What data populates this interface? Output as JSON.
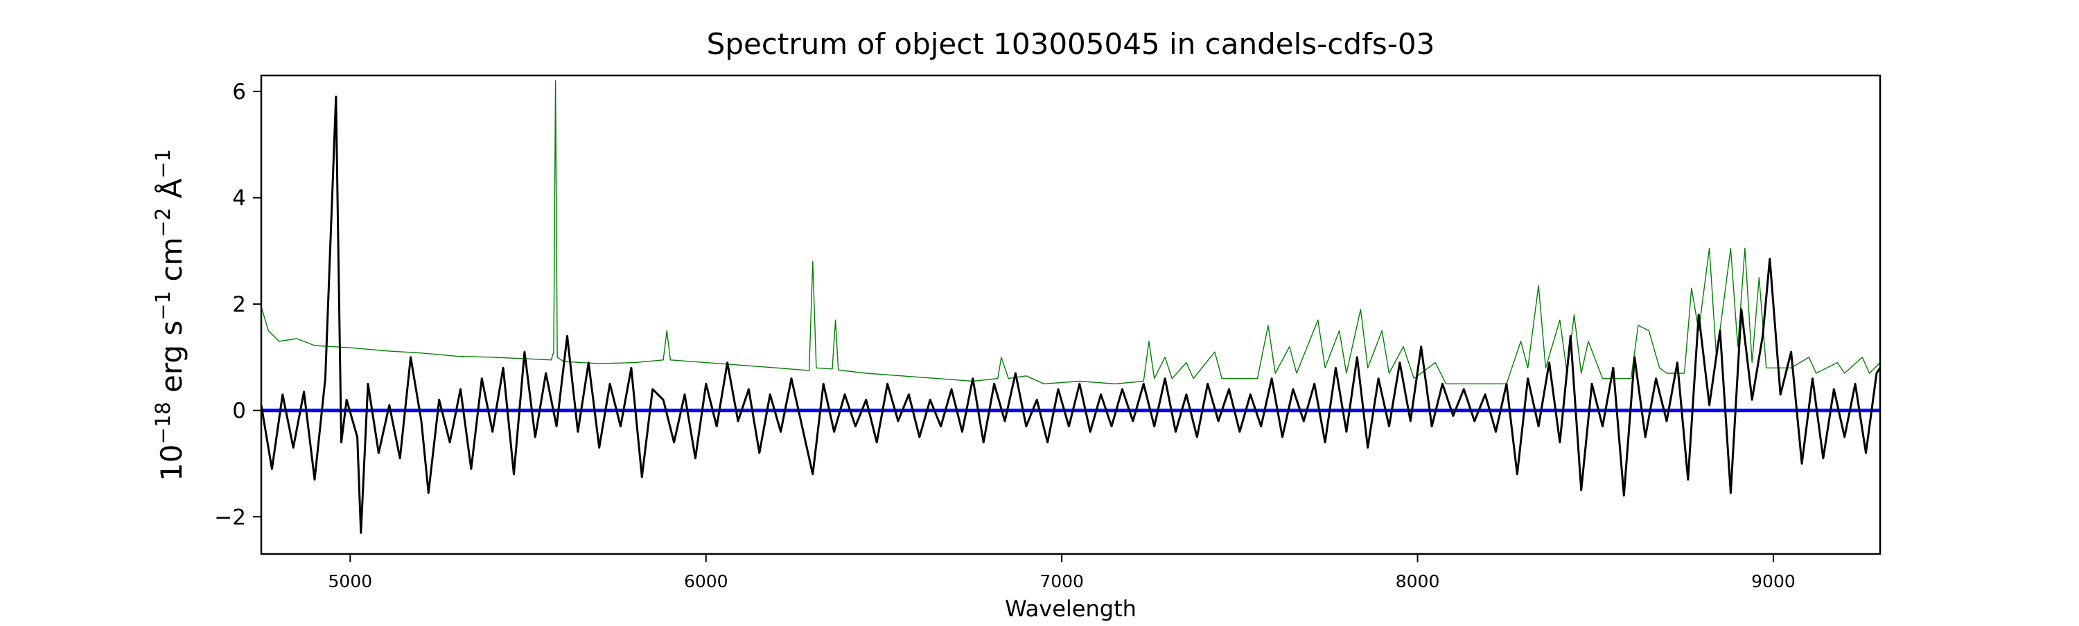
{
  "chart_data": {
    "type": "line",
    "title": "Spectrum of object 103005045 in candels-cdfs-03",
    "xlabel": "Wavelength",
    "ylabel": {
      "base": "10",
      "exp1": "−18",
      "erg": " erg s",
      "exp2": "−1",
      "cm": " cm",
      "exp3": "−2",
      "ang": " Å",
      "exp4": "−1"
    },
    "xlim": [
      4750,
      9300
    ],
    "ylim": [
      -2.7,
      6.3
    ],
    "grid": false,
    "xticks": [
      5000,
      6000,
      7000,
      8000,
      9000
    ],
    "xtick_labels": [
      "5000",
      "6000",
      "7000",
      "8000",
      "9000"
    ],
    "yticks": [
      -2,
      0,
      2,
      4,
      6
    ],
    "ytick_labels": [
      "−2",
      "0",
      "2",
      "4",
      "6"
    ],
    "colors": {
      "flux": "#000000",
      "model": "#008000",
      "zero": "#0000ff"
    },
    "series": [
      {
        "name": "model",
        "color": "#008000",
        "points": [
          [
            4750,
            1.95
          ],
          [
            4770,
            1.5
          ],
          [
            4800,
            1.3
          ],
          [
            4850,
            1.35
          ],
          [
            4900,
            1.22
          ],
          [
            4950,
            1.2
          ],
          [
            5000,
            1.18
          ],
          [
            5100,
            1.12
          ],
          [
            5200,
            1.08
          ],
          [
            5300,
            1.02
          ],
          [
            5400,
            1.0
          ],
          [
            5500,
            0.97
          ],
          [
            5565,
            0.95
          ],
          [
            5572,
            1.1
          ],
          [
            5577,
            6.2
          ],
          [
            5582,
            1.0
          ],
          [
            5600,
            0.92
          ],
          [
            5700,
            0.88
          ],
          [
            5800,
            0.9
          ],
          [
            5880,
            0.95
          ],
          [
            5890,
            1.5
          ],
          [
            5900,
            0.95
          ],
          [
            6000,
            0.9
          ],
          [
            6100,
            0.85
          ],
          [
            6200,
            0.8
          ],
          [
            6290,
            0.75
          ],
          [
            6300,
            2.8
          ],
          [
            6310,
            0.8
          ],
          [
            6355,
            0.78
          ],
          [
            6364,
            1.7
          ],
          [
            6372,
            0.76
          ],
          [
            6450,
            0.7
          ],
          [
            6550,
            0.65
          ],
          [
            6650,
            0.6
          ],
          [
            6750,
            0.55
          ],
          [
            6820,
            0.6
          ],
          [
            6830,
            1.0
          ],
          [
            6850,
            0.6
          ],
          [
            6900,
            0.65
          ],
          [
            6950,
            0.5
          ],
          [
            7050,
            0.55
          ],
          [
            7150,
            0.5
          ],
          [
            7230,
            0.55
          ],
          [
            7245,
            1.3
          ],
          [
            7260,
            0.6
          ],
          [
            7290,
            1.0
          ],
          [
            7310,
            0.6
          ],
          [
            7350,
            0.9
          ],
          [
            7370,
            0.6
          ],
          [
            7430,
            1.1
          ],
          [
            7450,
            0.6
          ],
          [
            7550,
            0.6
          ],
          [
            7580,
            1.6
          ],
          [
            7600,
            0.7
          ],
          [
            7640,
            1.2
          ],
          [
            7660,
            0.7
          ],
          [
            7720,
            1.7
          ],
          [
            7740,
            0.8
          ],
          [
            7780,
            1.5
          ],
          [
            7800,
            0.7
          ],
          [
            7840,
            1.9
          ],
          [
            7860,
            0.8
          ],
          [
            7900,
            1.5
          ],
          [
            7920,
            0.7
          ],
          [
            7960,
            1.2
          ],
          [
            7990,
            0.6
          ],
          [
            8050,
            0.9
          ],
          [
            8080,
            0.5
          ],
          [
            8150,
            0.5
          ],
          [
            8250,
            0.5
          ],
          [
            8290,
            1.3
          ],
          [
            8310,
            0.8
          ],
          [
            8340,
            2.35
          ],
          [
            8360,
            0.8
          ],
          [
            8400,
            1.7
          ],
          [
            8420,
            0.7
          ],
          [
            8440,
            1.8
          ],
          [
            8460,
            0.7
          ],
          [
            8480,
            1.3
          ],
          [
            8520,
            0.6
          ],
          [
            8600,
            0.6
          ],
          [
            8620,
            1.6
          ],
          [
            8650,
            1.5
          ],
          [
            8680,
            0.8
          ],
          [
            8700,
            0.7
          ],
          [
            8750,
            0.7
          ],
          [
            8770,
            2.3
          ],
          [
            8790,
            1.5
          ],
          [
            8820,
            3.05
          ],
          [
            8840,
            1.0
          ],
          [
            8880,
            3.05
          ],
          [
            8900,
            1.2
          ],
          [
            8920,
            3.05
          ],
          [
            8940,
            0.9
          ],
          [
            8960,
            2.5
          ],
          [
            8980,
            0.8
          ],
          [
            9050,
            0.8
          ],
          [
            9100,
            1.0
          ],
          [
            9120,
            0.7
          ],
          [
            9180,
            0.9
          ],
          [
            9200,
            0.7
          ],
          [
            9250,
            1.0
          ],
          [
            9270,
            0.7
          ],
          [
            9300,
            0.9
          ]
        ]
      },
      {
        "name": "zero",
        "color": "#0000ff",
        "points": [
          [
            4750,
            0
          ],
          [
            9300,
            0
          ]
        ]
      },
      {
        "name": "flux",
        "color": "#000000",
        "points": [
          [
            4750,
            0.1
          ],
          [
            4780,
            -1.1
          ],
          [
            4810,
            0.3
          ],
          [
            4840,
            -0.7
          ],
          [
            4870,
            0.35
          ],
          [
            4900,
            -1.3
          ],
          [
            4930,
            0.6
          ],
          [
            4960,
            5.9
          ],
          [
            4975,
            -0.6
          ],
          [
            4990,
            0.2
          ],
          [
            5020,
            -0.5
          ],
          [
            5030,
            -2.3
          ],
          [
            5050,
            0.5
          ],
          [
            5080,
            -0.8
          ],
          [
            5110,
            0.1
          ],
          [
            5140,
            -0.9
          ],
          [
            5170,
            1.0
          ],
          [
            5200,
            -0.2
          ],
          [
            5220,
            -1.55
          ],
          [
            5250,
            0.2
          ],
          [
            5280,
            -0.6
          ],
          [
            5310,
            0.4
          ],
          [
            5340,
            -1.1
          ],
          [
            5370,
            0.6
          ],
          [
            5400,
            -0.4
          ],
          [
            5430,
            0.8
          ],
          [
            5460,
            -1.2
          ],
          [
            5490,
            1.1
          ],
          [
            5520,
            -0.5
          ],
          [
            5550,
            0.7
          ],
          [
            5580,
            -0.3
          ],
          [
            5610,
            1.4
          ],
          [
            5640,
            -0.4
          ],
          [
            5670,
            0.9
          ],
          [
            5700,
            -0.7
          ],
          [
            5730,
            0.5
          ],
          [
            5760,
            -0.3
          ],
          [
            5790,
            0.8
          ],
          [
            5820,
            -1.25
          ],
          [
            5850,
            0.4
          ],
          [
            5880,
            0.2
          ],
          [
            5910,
            -0.6
          ],
          [
            5940,
            0.3
          ],
          [
            5970,
            -0.9
          ],
          [
            6000,
            0.5
          ],
          [
            6030,
            -0.3
          ],
          [
            6060,
            0.9
          ],
          [
            6090,
            -0.2
          ],
          [
            6120,
            0.4
          ],
          [
            6150,
            -0.8
          ],
          [
            6180,
            0.3
          ],
          [
            6210,
            -0.4
          ],
          [
            6240,
            0.6
          ],
          [
            6270,
            -0.3
          ],
          [
            6300,
            -1.2
          ],
          [
            6330,
            0.5
          ],
          [
            6360,
            -0.4
          ],
          [
            6390,
            0.3
          ],
          [
            6420,
            -0.3
          ],
          [
            6450,
            0.2
          ],
          [
            6480,
            -0.6
          ],
          [
            6510,
            0.5
          ],
          [
            6540,
            -0.2
          ],
          [
            6570,
            0.3
          ],
          [
            6600,
            -0.5
          ],
          [
            6630,
            0.2
          ],
          [
            6660,
            -0.3
          ],
          [
            6690,
            0.4
          ],
          [
            6720,
            -0.4
          ],
          [
            6750,
            0.6
          ],
          [
            6780,
            -0.6
          ],
          [
            6810,
            0.5
          ],
          [
            6840,
            -0.2
          ],
          [
            6870,
            0.7
          ],
          [
            6900,
            -0.3
          ],
          [
            6930,
            0.2
          ],
          [
            6960,
            -0.6
          ],
          [
            6990,
            0.4
          ],
          [
            7020,
            -0.3
          ],
          [
            7050,
            0.5
          ],
          [
            7080,
            -0.4
          ],
          [
            7110,
            0.3
          ],
          [
            7140,
            -0.3
          ],
          [
            7170,
            0.4
          ],
          [
            7200,
            -0.2
          ],
          [
            7230,
            0.5
          ],
          [
            7260,
            -0.3
          ],
          [
            7290,
            0.6
          ],
          [
            7320,
            -0.4
          ],
          [
            7350,
            0.3
          ],
          [
            7380,
            -0.5
          ],
          [
            7410,
            0.5
          ],
          [
            7440,
            -0.2
          ],
          [
            7470,
            0.4
          ],
          [
            7500,
            -0.4
          ],
          [
            7530,
            0.3
          ],
          [
            7560,
            -0.3
          ],
          [
            7590,
            0.6
          ],
          [
            7620,
            -0.5
          ],
          [
            7650,
            0.4
          ],
          [
            7680,
            -0.2
          ],
          [
            7710,
            0.5
          ],
          [
            7740,
            -0.6
          ],
          [
            7770,
            0.8
          ],
          [
            7800,
            -0.4
          ],
          [
            7830,
            1.0
          ],
          [
            7860,
            -0.7
          ],
          [
            7890,
            0.6
          ],
          [
            7920,
            -0.3
          ],
          [
            7950,
            0.9
          ],
          [
            7980,
            -0.2
          ],
          [
            8010,
            1.2
          ],
          [
            8040,
            -0.3
          ],
          [
            8070,
            0.5
          ],
          [
            8100,
            -0.1
          ],
          [
            8130,
            0.4
          ],
          [
            8160,
            -0.2
          ],
          [
            8190,
            0.3
          ],
          [
            8220,
            -0.4
          ],
          [
            8250,
            0.5
          ],
          [
            8280,
            -1.2
          ],
          [
            8310,
            0.6
          ],
          [
            8340,
            -0.3
          ],
          [
            8370,
            0.9
          ],
          [
            8400,
            -0.6
          ],
          [
            8430,
            1.4
          ],
          [
            8460,
            -1.5
          ],
          [
            8490,
            0.5
          ],
          [
            8520,
            -0.3
          ],
          [
            8550,
            0.8
          ],
          [
            8580,
            -1.6
          ],
          [
            8610,
            1.0
          ],
          [
            8640,
            -0.5
          ],
          [
            8670,
            0.6
          ],
          [
            8700,
            -0.2
          ],
          [
            8730,
            0.9
          ],
          [
            8760,
            -1.3
          ],
          [
            8790,
            1.8
          ],
          [
            8820,
            0.1
          ],
          [
            8850,
            1.5
          ],
          [
            8880,
            -1.55
          ],
          [
            8910,
            1.9
          ],
          [
            8940,
            0.2
          ],
          [
            8970,
            1.4
          ],
          [
            8990,
            2.85
          ],
          [
            9020,
            0.3
          ],
          [
            9050,
            1.1
          ],
          [
            9080,
            -1.0
          ],
          [
            9110,
            0.6
          ],
          [
            9140,
            -0.9
          ],
          [
            9170,
            0.4
          ],
          [
            9200,
            -0.5
          ],
          [
            9230,
            0.5
          ],
          [
            9260,
            -0.8
          ],
          [
            9290,
            0.7
          ],
          [
            9300,
            0.8
          ]
        ]
      }
    ]
  }
}
